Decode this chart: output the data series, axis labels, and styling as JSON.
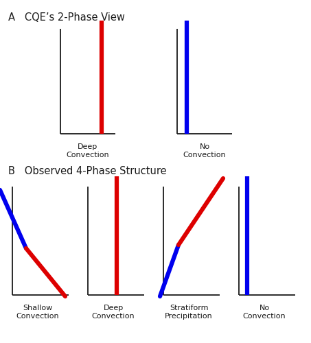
{
  "title_A": "A   CQE’s 2-Phase View",
  "title_B": "B   Observed 4-Phase Structure",
  "panel_A_labels": [
    "Deep\nConvection",
    "No\nConvection"
  ],
  "panel_B_labels": [
    "Shallow\nConvection",
    "Deep\nConvection",
    "Stratiform\nPrecipitation",
    "No\nConvection"
  ],
  "red": "#dd0000",
  "blue": "#0000ee",
  "black": "#1a1a1a",
  "lw_colored": 4.5,
  "lw_black": 1.3,
  "bg_color": "#ffffff",
  "label_fontsize": 8.0,
  "title_fontsize": 10.5
}
